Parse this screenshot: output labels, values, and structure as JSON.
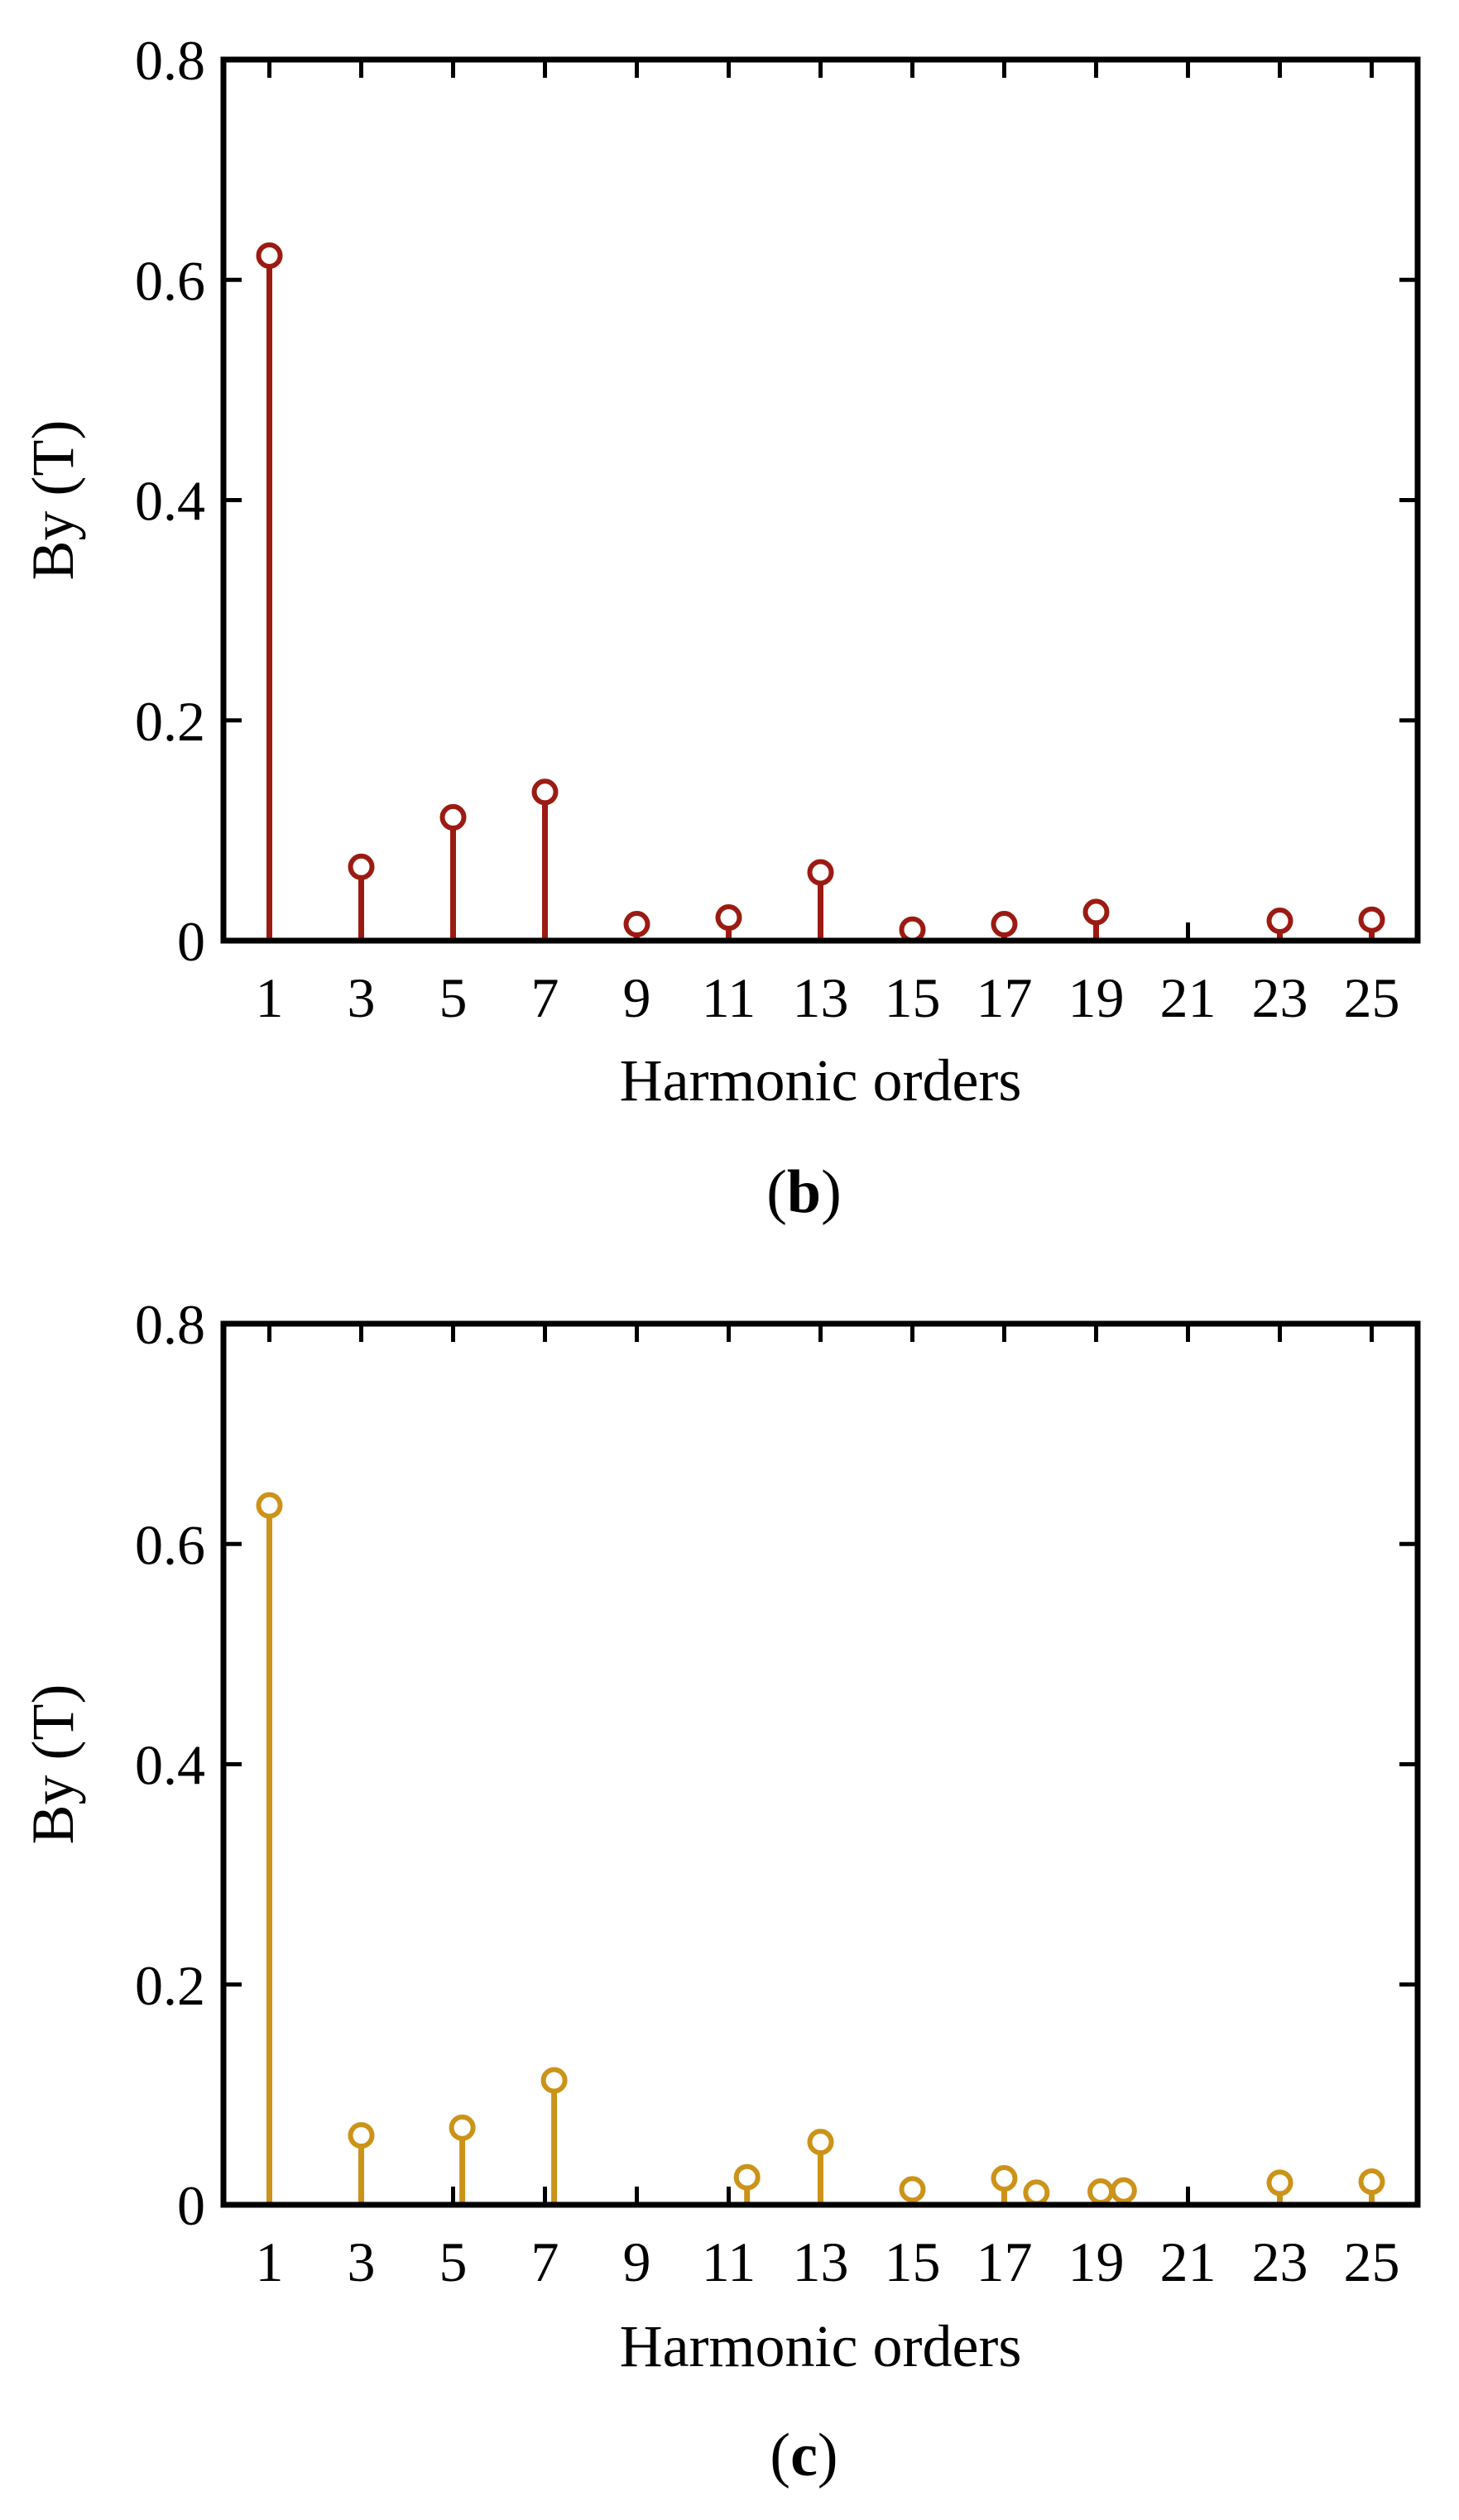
{
  "chart_data": [
    {
      "type": "stem",
      "panel_label": "b",
      "xlabel": "Harmonic orders",
      "ylabel": "By (T)",
      "ylim": [
        0,
        0.8
      ],
      "yticks": [
        "0",
        "0.2",
        "0.4",
        "0.6",
        "0.8"
      ],
      "xlim": [
        0,
        26
      ],
      "xticks": [
        "1",
        "3",
        "5",
        "7",
        "9",
        "11",
        "13",
        "15",
        "17",
        "19",
        "21",
        "23",
        "25"
      ],
      "grid": false,
      "legend": "none",
      "color": "#9b1b12",
      "points": [
        {
          "x": 1,
          "y": 0.622
        },
        {
          "x": 3,
          "y": 0.067
        },
        {
          "x": 5,
          "y": 0.112
        },
        {
          "x": 7,
          "y": 0.135
        },
        {
          "x": 9,
          "y": 0.015
        },
        {
          "x": 11,
          "y": 0.021
        },
        {
          "x": 13,
          "y": 0.062
        },
        {
          "x": 15,
          "y": 0.01
        },
        {
          "x": 17,
          "y": 0.015
        },
        {
          "x": 19,
          "y": 0.026
        },
        {
          "x": 23,
          "y": 0.018
        },
        {
          "x": 25,
          "y": 0.019
        }
      ]
    },
    {
      "type": "stem",
      "panel_label": "c",
      "xlabel": "Harmonic orders",
      "ylabel": "By (T)",
      "ylim": [
        0,
        0.8
      ],
      "yticks": [
        "0",
        "0.2",
        "0.4",
        "0.6",
        "0.8"
      ],
      "xlim": [
        0,
        26
      ],
      "xticks": [
        "1",
        "3",
        "5",
        "7",
        "9",
        "11",
        "13",
        "15",
        "17",
        "19",
        "21",
        "23",
        "25"
      ],
      "grid": false,
      "legend": "none",
      "color": "#cc9319",
      "points": [
        {
          "x": 1,
          "y": 0.635
        },
        {
          "x": 3,
          "y": 0.063
        },
        {
          "x": 5.2,
          "y": 0.07
        },
        {
          "x": 7.2,
          "y": 0.113
        },
        {
          "x": 11.4,
          "y": 0.025
        },
        {
          "x": 13,
          "y": 0.057
        },
        {
          "x": 15,
          "y": 0.014
        },
        {
          "x": 17,
          "y": 0.024
        },
        {
          "x": 17.7,
          "y": 0.011
        },
        {
          "x": 19.1,
          "y": 0.012
        },
        {
          "x": 19.6,
          "y": 0.013
        },
        {
          "x": 23,
          "y": 0.02
        },
        {
          "x": 25,
          "y": 0.021
        }
      ]
    }
  ]
}
